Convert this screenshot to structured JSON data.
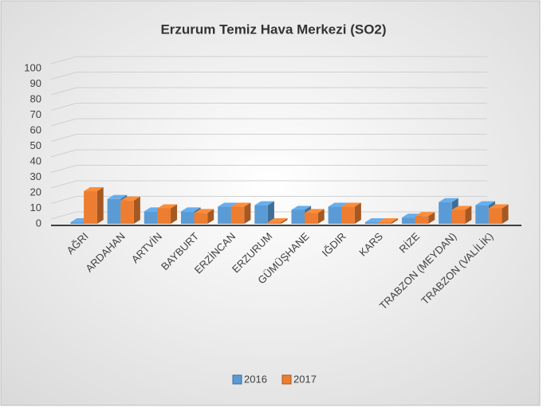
{
  "chart_data": {
    "type": "bar3d",
    "title": "Erzurum Temiz Hava Merkezi (SO2)",
    "categories": [
      "AĞRI",
      "ARDAHAN",
      "ARTVİN",
      "BAYBURT",
      "ERZİNCAN",
      "ERZURUM",
      "GÜMÜŞHANE",
      "IĞDIR",
      "KARS",
      "RİZE",
      "TRABZON (MEYDAN)",
      "TRABZON (VALİLİK)"
    ],
    "series": [
      {
        "name": "2016",
        "color": "#5b9bd5",
        "values": [
          1,
          16,
          8,
          8,
          11,
          12,
          9,
          11,
          1,
          4,
          14,
          12
        ]
      },
      {
        "name": "2017",
        "color": "#ed7d31",
        "values": [
          21,
          15,
          10,
          7,
          11,
          1,
          7,
          11,
          1,
          5,
          9,
          10
        ]
      }
    ],
    "ylim": [
      0,
      100
    ],
    "yticks": [
      0,
      10,
      20,
      30,
      40,
      50,
      60,
      70,
      80,
      90,
      100
    ],
    "grid": true,
    "legend": "bottom"
  }
}
